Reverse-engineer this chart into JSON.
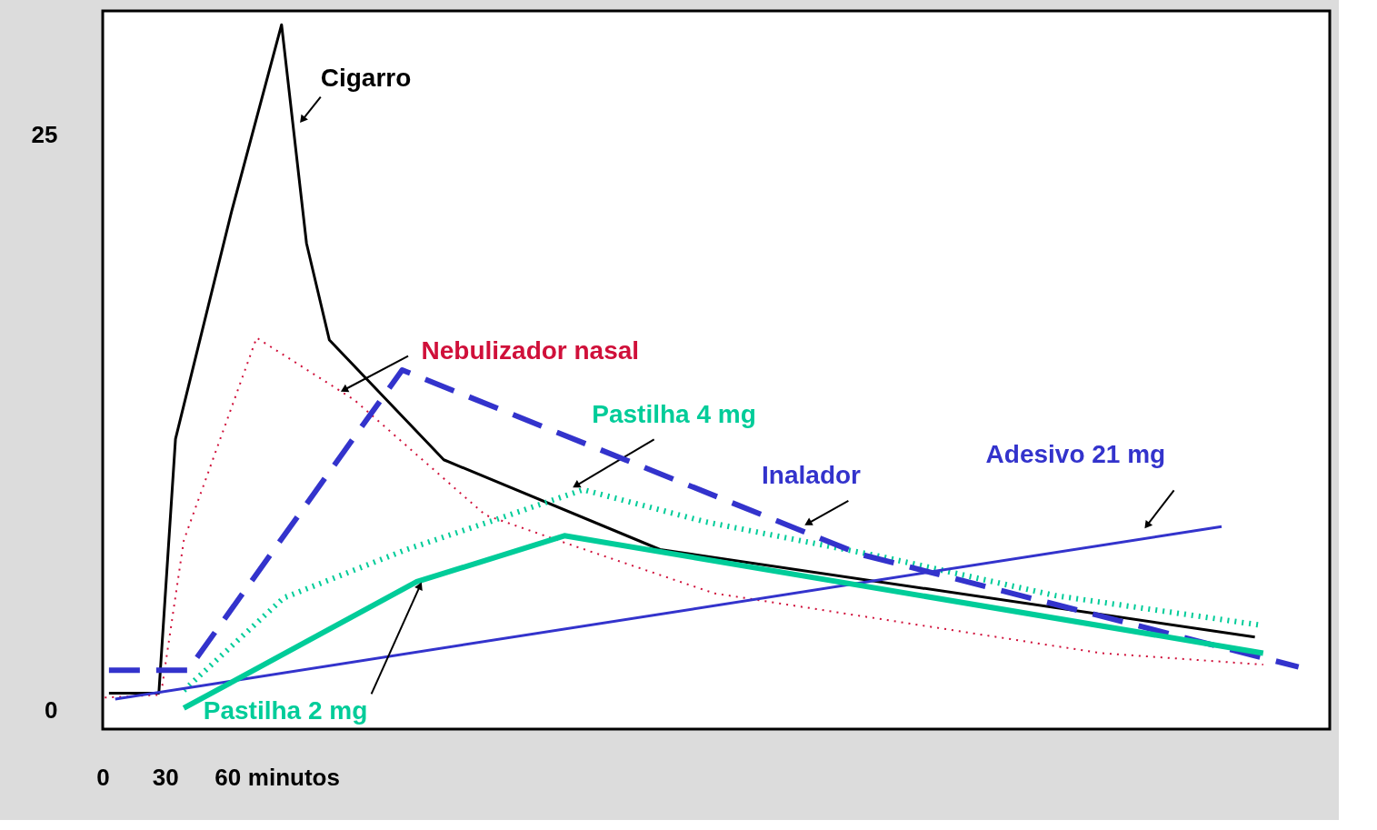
{
  "chart_data": {
    "type": "line",
    "xlim": [
      0,
      590
    ],
    "ylim": [
      -0.8,
      30.4
    ],
    "xticks": [
      0,
      30,
      60
    ],
    "xlabel": "minutos",
    "yticks": [
      0,
      25
    ],
    "grid": false,
    "legend": false,
    "marker": "none",
    "series": [
      {
        "name": "Cigarro",
        "color": "#000000",
        "line_style": "solid",
        "x": [
          3,
          27,
          35,
          62,
          86,
          98,
          109,
          164,
          268,
          554
        ],
        "values": [
          0.76,
          0.76,
          11.8,
          21.7,
          29.8,
          20.3,
          16.1,
          10.9,
          7.0,
          3.2
        ]
      },
      {
        "name": "Nebulizador nasal",
        "color": "#d0103a",
        "line_style": "dotted",
        "x": [
          1,
          28,
          39,
          74,
          121,
          184,
          222,
          294,
          480,
          558
        ],
        "values": [
          0.57,
          0.69,
          7.4,
          16.2,
          13.5,
          8.5,
          7.3,
          5.1,
          2.5,
          2.0
        ]
      },
      {
        "name": "Pastilha 4 mg",
        "color": "#00cc99",
        "line_style": "dotted",
        "x": [
          39,
          87,
          146,
          189,
          231,
          290,
          374,
          458,
          558
        ],
        "values": [
          0.88,
          4.9,
          7.0,
          8.3,
          9.6,
          8.2,
          6.7,
          5.0,
          3.7
        ]
      },
      {
        "name": "Inalador",
        "color": "#3333cc",
        "line_style": "dashed",
        "x": [
          3,
          41,
          144,
          364,
          575
        ],
        "values": [
          1.76,
          1.76,
          14.8,
          6.8,
          1.9
        ]
      },
      {
        "name": "Adesivo 21 mg",
        "color": "#3333cc",
        "line_style": "solid",
        "x": [
          6,
          538
        ],
        "values": [
          0.5,
          8.0
        ]
      },
      {
        "name": "Pastilha 2 mg",
        "color": "#00cc99",
        "line_style": "solid",
        "x": [
          39,
          151,
          222,
          558
        ],
        "values": [
          0.11,
          5.6,
          7.6,
          2.5
        ]
      }
    ]
  }
}
